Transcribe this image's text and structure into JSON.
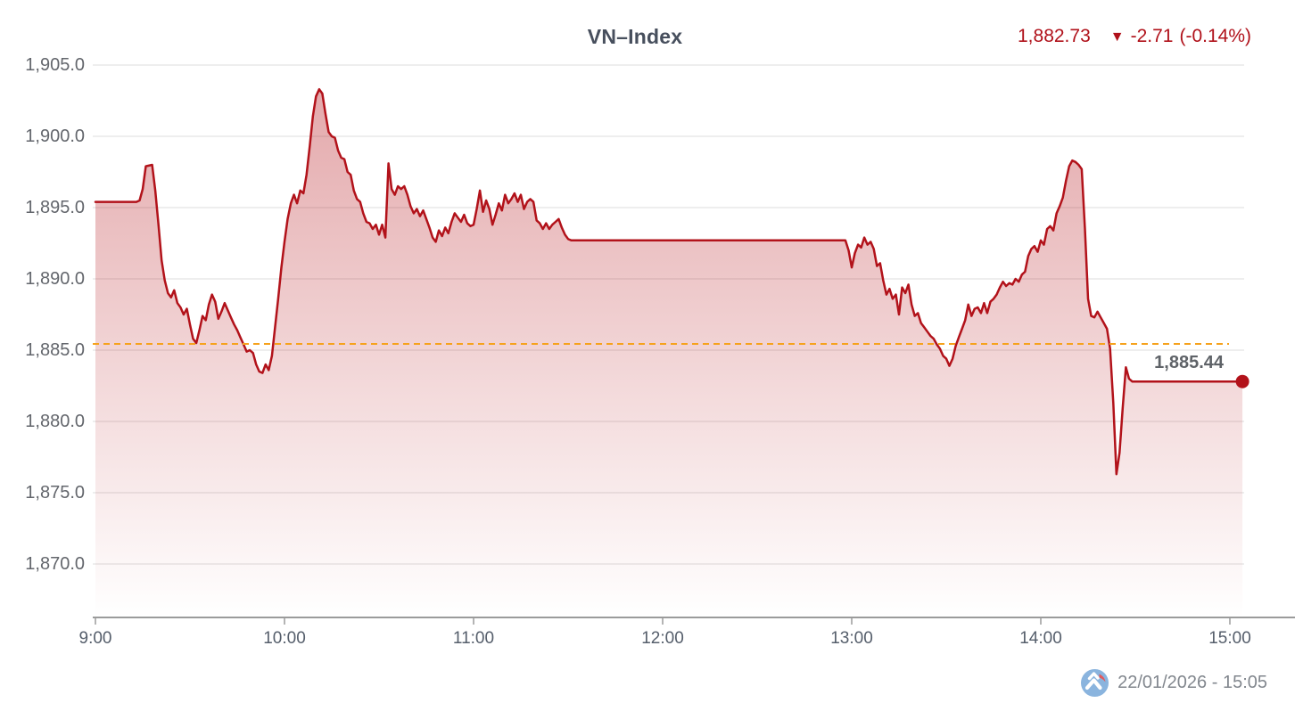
{
  "header": {
    "title": "VN–Index",
    "last_price": "1,882.73",
    "direction_icon": "▼",
    "change": "-2.71",
    "change_percent": "(-0.14%)"
  },
  "footer": {
    "datetime": "22/01/2026 - 15:05"
  },
  "reference": {
    "label": "1,885.44"
  },
  "colors": {
    "line": "#b2121a",
    "fill_top": "rgba(180,18,25,0.38)",
    "fill_bottom": "rgba(180,18,25,0)",
    "reference_line": "#f6a21c",
    "grid": "#e8e8e8",
    "axis": "#9b9b9b",
    "axis_text": "#555e6b",
    "quote_red": "#b0111a",
    "title_text": "#474f5d",
    "marker": "#b2121a"
  },
  "chart_data": {
    "type": "area",
    "title": "VN–Index",
    "legend": "none",
    "grid": "horizontal-only",
    "x_axis": {
      "labels": [
        "9:00",
        "10:00",
        "11:00",
        "12:00",
        "13:00",
        "14:00",
        "15:00"
      ],
      "unit": "time of day"
    },
    "y_axis": {
      "labels": [
        "1,905.0",
        "1,900.0",
        "1,895.0",
        "1,890.0",
        "1,885.0",
        "1,880.0",
        "1,875.0",
        "1,870.0"
      ],
      "values": [
        1905,
        1900,
        1895,
        1890,
        1885,
        1880,
        1875,
        1870
      ]
    },
    "ylim": [
      1866.5,
      1905
    ],
    "previous_close": 1885.44,
    "last_value": 1882.73,
    "session_low": 1876.3,
    "session_high": 1903.3,
    "series": [
      {
        "name": "VN-Index",
        "x_unit": "minutes since 09:00",
        "points": [
          [
            0,
            1895.4
          ],
          [
            13,
            1895.4
          ],
          [
            14,
            1895.5
          ],
          [
            15,
            1896.3
          ],
          [
            16,
            1897.9
          ],
          [
            18,
            1898.0
          ],
          [
            19,
            1896.2
          ],
          [
            20,
            1893.8
          ],
          [
            21,
            1891.3
          ],
          [
            22,
            1889.9
          ],
          [
            23,
            1889.0
          ],
          [
            24,
            1888.7
          ],
          [
            25,
            1889.2
          ],
          [
            26,
            1888.3
          ],
          [
            27,
            1888.0
          ],
          [
            28,
            1887.5
          ],
          [
            29,
            1887.9
          ],
          [
            30,
            1886.8
          ],
          [
            31,
            1885.8
          ],
          [
            32,
            1885.5
          ],
          [
            33,
            1886.4
          ],
          [
            34,
            1887.4
          ],
          [
            35,
            1887.1
          ],
          [
            36,
            1888.2
          ],
          [
            37,
            1888.9
          ],
          [
            38,
            1888.4
          ],
          [
            39,
            1887.2
          ],
          [
            40,
            1887.7
          ],
          [
            41,
            1888.3
          ],
          [
            42,
            1887.8
          ],
          [
            43,
            1887.3
          ],
          [
            44,
            1886.8
          ],
          [
            45,
            1886.4
          ],
          [
            46,
            1885.9
          ],
          [
            47,
            1885.4
          ],
          [
            48,
            1884.9
          ],
          [
            49,
            1885.0
          ],
          [
            50,
            1884.8
          ],
          [
            51,
            1884.0
          ],
          [
            52,
            1883.5
          ],
          [
            53,
            1883.4
          ],
          [
            54,
            1884.0
          ],
          [
            55,
            1883.6
          ],
          [
            56,
            1884.6
          ],
          [
            57,
            1886.6
          ],
          [
            58,
            1888.6
          ],
          [
            59,
            1890.8
          ],
          [
            60,
            1892.6
          ],
          [
            61,
            1894.2
          ],
          [
            62,
            1895.3
          ],
          [
            63,
            1895.9
          ],
          [
            64,
            1895.3
          ],
          [
            65,
            1896.2
          ],
          [
            66,
            1896.0
          ],
          [
            67,
            1897.3
          ],
          [
            68,
            1899.3
          ],
          [
            69,
            1901.4
          ],
          [
            70,
            1902.8
          ],
          [
            71,
            1903.3
          ],
          [
            72,
            1903.0
          ],
          [
            73,
            1901.6
          ],
          [
            74,
            1900.3
          ],
          [
            75,
            1900.0
          ],
          [
            76,
            1899.9
          ],
          [
            77,
            1899.0
          ],
          [
            78,
            1898.5
          ],
          [
            79,
            1898.4
          ],
          [
            80,
            1897.5
          ],
          [
            81,
            1897.3
          ],
          [
            82,
            1896.2
          ],
          [
            83,
            1895.6
          ],
          [
            84,
            1895.4
          ],
          [
            85,
            1894.6
          ],
          [
            86,
            1894.0
          ],
          [
            87,
            1893.9
          ],
          [
            88,
            1893.5
          ],
          [
            89,
            1893.8
          ],
          [
            90,
            1893.1
          ],
          [
            91,
            1893.8
          ],
          [
            92,
            1892.9
          ],
          [
            93,
            1898.1
          ],
          [
            94,
            1896.3
          ],
          [
            95,
            1895.9
          ],
          [
            96,
            1896.5
          ],
          [
            97,
            1896.3
          ],
          [
            98,
            1896.5
          ],
          [
            99,
            1895.9
          ],
          [
            100,
            1895.1
          ],
          [
            101,
            1894.6
          ],
          [
            102,
            1894.9
          ],
          [
            103,
            1894.4
          ],
          [
            104,
            1894.8
          ],
          [
            105,
            1894.2
          ],
          [
            106,
            1893.6
          ],
          [
            107,
            1892.9
          ],
          [
            108,
            1892.6
          ],
          [
            109,
            1893.4
          ],
          [
            110,
            1893.0
          ],
          [
            111,
            1893.6
          ],
          [
            112,
            1893.2
          ],
          [
            113,
            1894.0
          ],
          [
            114,
            1894.6
          ],
          [
            115,
            1894.3
          ],
          [
            116,
            1894.0
          ],
          [
            117,
            1894.5
          ],
          [
            118,
            1893.9
          ],
          [
            119,
            1893.7
          ],
          [
            120,
            1893.8
          ],
          [
            121,
            1894.9
          ],
          [
            122,
            1896.2
          ],
          [
            123,
            1894.7
          ],
          [
            124,
            1895.5
          ],
          [
            125,
            1894.9
          ],
          [
            126,
            1893.8
          ],
          [
            127,
            1894.5
          ],
          [
            128,
            1895.3
          ],
          [
            129,
            1894.8
          ],
          [
            130,
            1895.9
          ],
          [
            131,
            1895.3
          ],
          [
            132,
            1895.6
          ],
          [
            133,
            1896.0
          ],
          [
            134,
            1895.4
          ],
          [
            135,
            1895.9
          ],
          [
            136,
            1894.9
          ],
          [
            137,
            1895.4
          ],
          [
            138,
            1895.6
          ],
          [
            139,
            1895.4
          ],
          [
            140,
            1894.1
          ],
          [
            141,
            1893.9
          ],
          [
            142,
            1893.5
          ],
          [
            143,
            1893.9
          ],
          [
            144,
            1893.5
          ],
          [
            145,
            1893.8
          ],
          [
            146,
            1894.0
          ],
          [
            147,
            1894.2
          ],
          [
            148,
            1893.6
          ],
          [
            149,
            1893.1
          ],
          [
            150,
            1892.8
          ],
          [
            151,
            1892.7
          ],
          [
            238,
            1892.7
          ],
          [
            239,
            1892.0
          ],
          [
            240,
            1890.8
          ],
          [
            241,
            1891.8
          ],
          [
            242,
            1892.4
          ],
          [
            243,
            1892.2
          ],
          [
            244,
            1892.9
          ],
          [
            245,
            1892.4
          ],
          [
            246,
            1892.6
          ],
          [
            247,
            1892.1
          ],
          [
            248,
            1890.9
          ],
          [
            249,
            1891.1
          ],
          [
            250,
            1889.9
          ],
          [
            251,
            1888.9
          ],
          [
            252,
            1889.3
          ],
          [
            253,
            1888.6
          ],
          [
            254,
            1888.9
          ],
          [
            255,
            1887.5
          ],
          [
            256,
            1889.4
          ],
          [
            257,
            1889.0
          ],
          [
            258,
            1889.6
          ],
          [
            259,
            1888.2
          ],
          [
            260,
            1887.4
          ],
          [
            261,
            1887.6
          ],
          [
            262,
            1886.9
          ],
          [
            263,
            1886.6
          ],
          [
            264,
            1886.3
          ],
          [
            265,
            1886.0
          ],
          [
            266,
            1885.8
          ],
          [
            267,
            1885.4
          ],
          [
            268,
            1885.1
          ],
          [
            269,
            1884.6
          ],
          [
            270,
            1884.4
          ],
          [
            271,
            1883.9
          ],
          [
            272,
            1884.4
          ],
          [
            273,
            1885.3
          ],
          [
            274,
            1885.9
          ],
          [
            275,
            1886.5
          ],
          [
            276,
            1887.1
          ],
          [
            277,
            1888.2
          ],
          [
            278,
            1887.4
          ],
          [
            279,
            1887.9
          ],
          [
            280,
            1888.0
          ],
          [
            281,
            1887.6
          ],
          [
            282,
            1888.3
          ],
          [
            283,
            1887.6
          ],
          [
            284,
            1888.4
          ],
          [
            285,
            1888.6
          ],
          [
            286,
            1888.9
          ],
          [
            287,
            1889.4
          ],
          [
            288,
            1889.8
          ],
          [
            289,
            1889.5
          ],
          [
            290,
            1889.7
          ],
          [
            291,
            1889.6
          ],
          [
            292,
            1890.0
          ],
          [
            293,
            1889.8
          ],
          [
            294,
            1890.3
          ],
          [
            295,
            1890.5
          ],
          [
            296,
            1891.6
          ],
          [
            297,
            1892.1
          ],
          [
            298,
            1892.3
          ],
          [
            299,
            1891.9
          ],
          [
            300,
            1892.7
          ],
          [
            301,
            1892.4
          ],
          [
            302,
            1893.5
          ],
          [
            303,
            1893.7
          ],
          [
            304,
            1893.4
          ],
          [
            305,
            1894.6
          ],
          [
            306,
            1895.1
          ],
          [
            307,
            1895.7
          ],
          [
            308,
            1896.9
          ],
          [
            309,
            1897.9
          ],
          [
            310,
            1898.3
          ],
          [
            311,
            1898.2
          ],
          [
            312,
            1898.0
          ],
          [
            313,
            1897.7
          ],
          [
            314,
            1893.5
          ],
          [
            315,
            1888.6
          ],
          [
            316,
            1887.4
          ],
          [
            317,
            1887.3
          ],
          [
            318,
            1887.7
          ],
          [
            319,
            1887.3
          ],
          [
            320,
            1886.9
          ],
          [
            321,
            1886.5
          ],
          [
            322,
            1885.1
          ],
          [
            323,
            1881.3
          ],
          [
            324,
            1876.3
          ],
          [
            325,
            1877.8
          ],
          [
            326,
            1881.0
          ],
          [
            327,
            1883.8
          ],
          [
            328,
            1883.0
          ],
          [
            329,
            1882.8
          ],
          [
            364,
            1882.8
          ]
        ]
      }
    ]
  }
}
